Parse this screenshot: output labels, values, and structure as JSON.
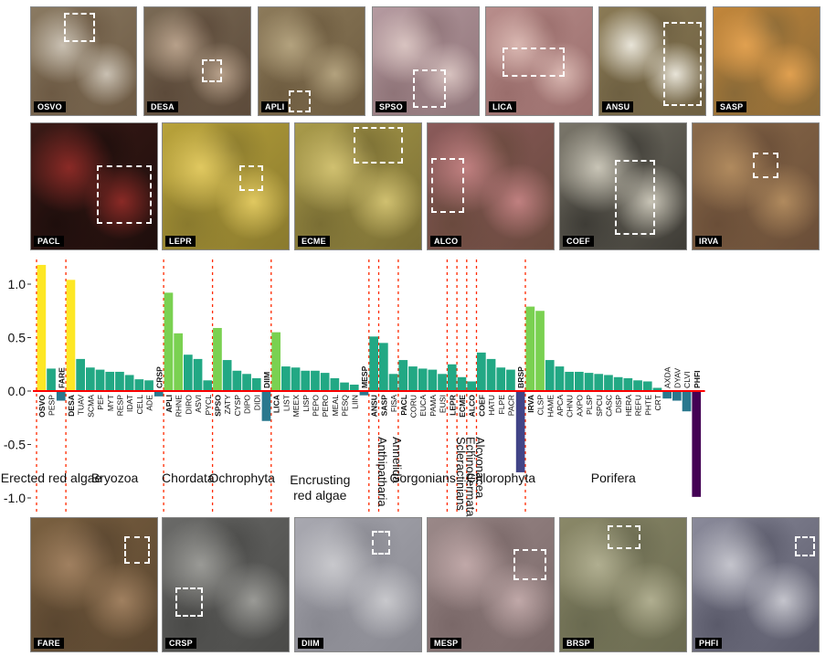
{
  "top_photos_row1": [
    {
      "label": "OSVO",
      "colors": [
        "#8a7a62",
        "#c9c0b2",
        "#6d5a44"
      ]
    },
    {
      "label": "DESA",
      "colors": [
        "#7a6a55",
        "#b7a08a",
        "#5c4a3a"
      ]
    },
    {
      "label": "APLI",
      "colors": [
        "#8c7a5a",
        "#b3a27e",
        "#6e5c40"
      ]
    },
    {
      "label": "SPSO",
      "colors": [
        "#b59aa0",
        "#d8c3c0",
        "#8f7478"
      ]
    },
    {
      "label": "LICA",
      "colors": [
        "#b88d8b",
        "#d9b7b1",
        "#9a6e6c"
      ]
    },
    {
      "label": "ANSU",
      "colors": [
        "#8a7a55",
        "#e8e4d8",
        "#6e6042"
      ]
    },
    {
      "label": "SASP",
      "colors": [
        "#c2863a",
        "#e0a050",
        "#8a6a38"
      ]
    }
  ],
  "top_photos_row2": [
    {
      "label": "PACL",
      "colors": [
        "#3a1a16",
        "#8a2a26",
        "#1e0e0c"
      ]
    },
    {
      "label": "LEPR",
      "colors": [
        "#b8a23a",
        "#e0c860",
        "#8a7a2e"
      ]
    },
    {
      "label": "ECME",
      "colors": [
        "#a89a4a",
        "#d0c070",
        "#7a6e34"
      ]
    },
    {
      "label": "ALCO",
      "colors": [
        "#8a5a5a",
        "#c08080",
        "#6a4a3e"
      ]
    },
    {
      "label": "COEF",
      "colors": [
        "#7a766a",
        "#c8c4b6",
        "#3e3c36"
      ]
    },
    {
      "label": "IRVA",
      "colors": [
        "#8a6a4a",
        "#b08a5e",
        "#6a4e38"
      ]
    }
  ],
  "bottom_photos": [
    {
      "label": "FARE",
      "colors": [
        "#7a6040",
        "#a08060",
        "#5a4630"
      ]
    },
    {
      "label": "CRSP",
      "colors": [
        "#6a6a68",
        "#9a9a96",
        "#4a4a48"
      ]
    },
    {
      "label": "DIIM",
      "colors": [
        "#a8a8b0",
        "#c8c8cc",
        "#888890"
      ]
    },
    {
      "label": "MESP",
      "colors": [
        "#9a8888",
        "#c0a8a8",
        "#7a6868"
      ]
    },
    {
      "label": "BRSP",
      "colors": [
        "#8a8868",
        "#b0ae90",
        "#6a6a50"
      ]
    },
    {
      "label": "PHFI",
      "colors": [
        "#8a8a9a",
        "#c4c4cc",
        "#5a5a6a"
      ]
    }
  ],
  "chart_data": {
    "type": "bar",
    "ylim": [
      -1.15,
      1.2
    ],
    "yticks": [
      "1.0",
      "0.5",
      "0.0",
      "-0.5",
      "-1.0"
    ],
    "ytick_values": [
      1.0,
      0.5,
      0.0,
      -0.5,
      -1.0
    ],
    "colors": {
      "high": "#fde725",
      "mid_high": "#7ad151",
      "mid": "#22a884",
      "low": "#2a788e",
      "neg": "#414487",
      "very_neg": "#440154",
      "zero_line": "#ff0000",
      "separator": "#ff2a00"
    },
    "groups": [
      {
        "name": "Erected red algae",
        "bars": [
          {
            "code": "OSVO",
            "value": 1.18,
            "bold": true
          },
          {
            "code": "PESP",
            "value": 0.21,
            "bold": false
          },
          {
            "code": "FARE",
            "value": -0.09,
            "bold": true
          }
        ]
      },
      {
        "name": "Bryozoa",
        "bars": [
          {
            "code": "DESA",
            "value": 1.04,
            "bold": true
          },
          {
            "code": "TUAV",
            "value": 0.3,
            "bold": false
          },
          {
            "code": "SCMA",
            "value": 0.22,
            "bold": false
          },
          {
            "code": "PEF",
            "value": 0.2,
            "bold": false
          },
          {
            "code": "MYT",
            "value": 0.18,
            "bold": false
          },
          {
            "code": "RESP",
            "value": 0.18,
            "bold": false
          },
          {
            "code": "IDAT",
            "value": 0.15,
            "bold": false
          },
          {
            "code": "CELL",
            "value": 0.11,
            "bold": false
          },
          {
            "code": "ADE",
            "value": 0.1,
            "bold": false
          },
          {
            "code": "CRSP",
            "value": -0.05,
            "bold": true
          }
        ]
      },
      {
        "name": "Chordata",
        "bars": [
          {
            "code": "APLI",
            "value": 0.92,
            "bold": true
          },
          {
            "code": "RHNE",
            "value": 0.54,
            "bold": false
          },
          {
            "code": "DIRO",
            "value": 0.34,
            "bold": false
          },
          {
            "code": "ASVI",
            "value": 0.3,
            "bold": false
          },
          {
            "code": "PYCL",
            "value": 0.1,
            "bold": false
          }
        ]
      },
      {
        "name": "Ochrophyta",
        "bars": [
          {
            "code": "SPSO",
            "value": 0.59,
            "bold": true
          },
          {
            "code": "ZATY",
            "value": 0.29,
            "bold": false
          },
          {
            "code": "CYSP",
            "value": 0.19,
            "bold": false
          },
          {
            "code": "DIPO",
            "value": 0.16,
            "bold": false
          },
          {
            "code": "DIDI",
            "value": 0.12,
            "bold": false
          },
          {
            "code": "DIIM",
            "value": -0.28,
            "bold": true
          }
        ]
      },
      {
        "name": "Encrusting red algae",
        "bars": [
          {
            "code": "LICA",
            "value": 0.55,
            "bold": true
          },
          {
            "code": "LIST",
            "value": 0.23,
            "bold": false
          },
          {
            "code": "MEEX",
            "value": 0.22,
            "bold": false
          },
          {
            "code": "LISP",
            "value": 0.19,
            "bold": false
          },
          {
            "code": "PEPO",
            "value": 0.19,
            "bold": false
          },
          {
            "code": "PERO",
            "value": 0.17,
            "bold": false
          },
          {
            "code": "MEAL",
            "value": 0.12,
            "bold": false
          },
          {
            "code": "PESQ",
            "value": 0.08,
            "bold": false
          },
          {
            "code": "LIIN",
            "value": 0.06,
            "bold": false
          },
          {
            "code": "MESP",
            "value": -0.04,
            "bold": true
          }
        ]
      },
      {
        "name": "Anthipatharia",
        "bars": [
          {
            "code": "ANSU",
            "value": 0.51,
            "bold": true
          }
        ]
      },
      {
        "name": "Annelida",
        "bars": [
          {
            "code": "SASP",
            "value": 0.45,
            "bold": true
          },
          {
            "code": "FISA",
            "value": 0.16,
            "bold": false
          }
        ]
      },
      {
        "name": "Gorgonians",
        "bars": [
          {
            "code": "PACL",
            "value": 0.29,
            "bold": true
          },
          {
            "code": "CORU",
            "value": 0.23,
            "bold": false
          },
          {
            "code": "EUCA",
            "value": 0.21,
            "bold": false
          },
          {
            "code": "PAMA",
            "value": 0.2,
            "bold": false
          },
          {
            "code": "EUSI",
            "value": 0.16,
            "bold": false
          }
        ]
      },
      {
        "name": "Scleractinians",
        "bars": [
          {
            "code": "LEPR",
            "value": 0.25,
            "bold": true
          }
        ]
      },
      {
        "name": "Echinodermata",
        "bars": [
          {
            "code": "ECME",
            "value": 0.13,
            "bold": true
          }
        ]
      },
      {
        "name": "Alcyonacea",
        "bars": [
          {
            "code": "ALCO",
            "value": 0.09,
            "bold": true
          }
        ]
      },
      {
        "name": "Chlorophyta",
        "bars": [
          {
            "code": "COEF",
            "value": 0.36,
            "bold": true
          },
          {
            "code": "HATU",
            "value": 0.3,
            "bold": false
          },
          {
            "code": "FLPE",
            "value": 0.22,
            "bold": false
          },
          {
            "code": "PACR",
            "value": 0.2,
            "bold": false
          },
          {
            "code": "BRSP",
            "value": -0.76,
            "bold": true
          }
        ]
      },
      {
        "name": "Porifera",
        "bars": [
          {
            "code": "IRVA",
            "value": 0.79,
            "bold": true
          },
          {
            "code": "CLSP",
            "value": 0.75,
            "bold": false
          },
          {
            "code": "HAME",
            "value": 0.29,
            "bold": false
          },
          {
            "code": "APCA",
            "value": 0.23,
            "bold": false
          },
          {
            "code": "CHNU",
            "value": 0.18,
            "bold": false
          },
          {
            "code": "AXPO",
            "value": 0.18,
            "bold": false
          },
          {
            "code": "PLSP",
            "value": 0.17,
            "bold": false
          },
          {
            "code": "SPCU",
            "value": 0.16,
            "bold": false
          },
          {
            "code": "CASC",
            "value": 0.15,
            "bold": false
          },
          {
            "code": "DISP",
            "value": 0.13,
            "bold": false
          },
          {
            "code": "HERA",
            "value": 0.12,
            "bold": false
          },
          {
            "code": "REFU",
            "value": 0.1,
            "bold": false
          },
          {
            "code": "PHTE",
            "value": 0.09,
            "bold": false
          },
          {
            "code": "CRT",
            "value": 0.03,
            "bold": false
          },
          {
            "code": "AXDA",
            "value": -0.07,
            "bold": false
          },
          {
            "code": "DYAV",
            "value": -0.09,
            "bold": false
          },
          {
            "code": "CLVI",
            "value": -0.19,
            "bold": false
          },
          {
            "code": "PHFI",
            "value": -0.99,
            "bold": true
          }
        ]
      }
    ]
  }
}
